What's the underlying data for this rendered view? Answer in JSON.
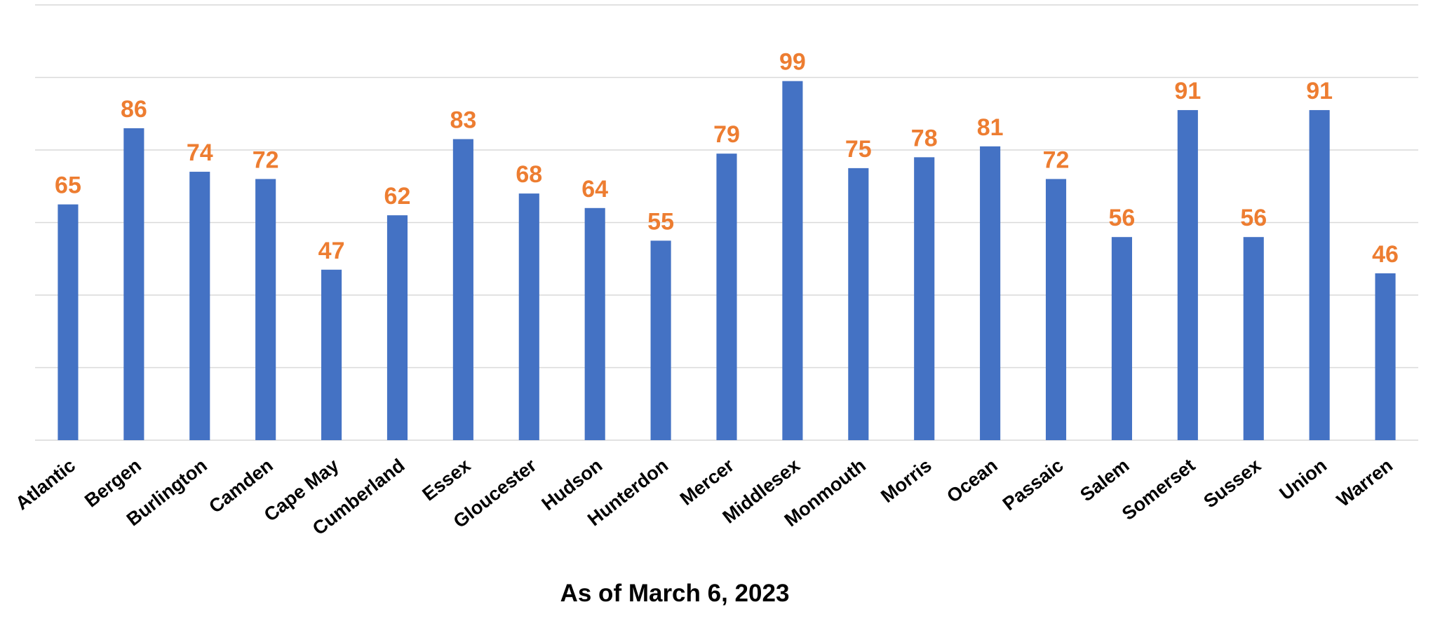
{
  "chart_data": {
    "type": "bar",
    "x_label": "As of March 6, 2023",
    "categories": [
      "Atlantic",
      "Bergen",
      "Burlington",
      "Camden",
      "Cape May",
      "Cumberland",
      "Essex",
      "Gloucester",
      "Hudson",
      "Hunterdon",
      "Mercer",
      "Middlesex",
      "Monmouth",
      "Morris",
      "Ocean",
      "Passaic",
      "Salem",
      "Somerset",
      "Sussex",
      "Union",
      "Warren"
    ],
    "values": [
      65,
      86,
      74,
      72,
      47,
      62,
      83,
      68,
      64,
      55,
      79,
      99,
      75,
      78,
      81,
      72,
      56,
      91,
      56,
      91,
      46
    ],
    "color": "#4472c4",
    "label_color": "#ed7d31",
    "ylim": [
      0,
      120
    ],
    "yticks": [
      0,
      20,
      40,
      60,
      80,
      100,
      120
    ],
    "grid": true
  }
}
